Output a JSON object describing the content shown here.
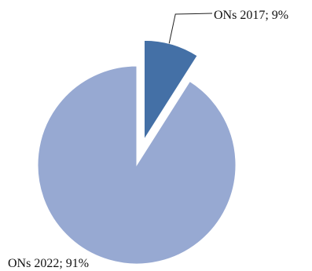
{
  "chart_data": {
    "type": "pie",
    "title": "",
    "exploded": "ONs 2017",
    "slices": [
      {
        "name": "ONs 2017",
        "percent": 9,
        "label": "ONs 2017; 9%",
        "color": "#4470A6"
      },
      {
        "name": "ONs 2022",
        "percent": 91,
        "label": "ONs 2022; 91%",
        "color": "#97A9D2"
      }
    ],
    "legend": "none"
  }
}
